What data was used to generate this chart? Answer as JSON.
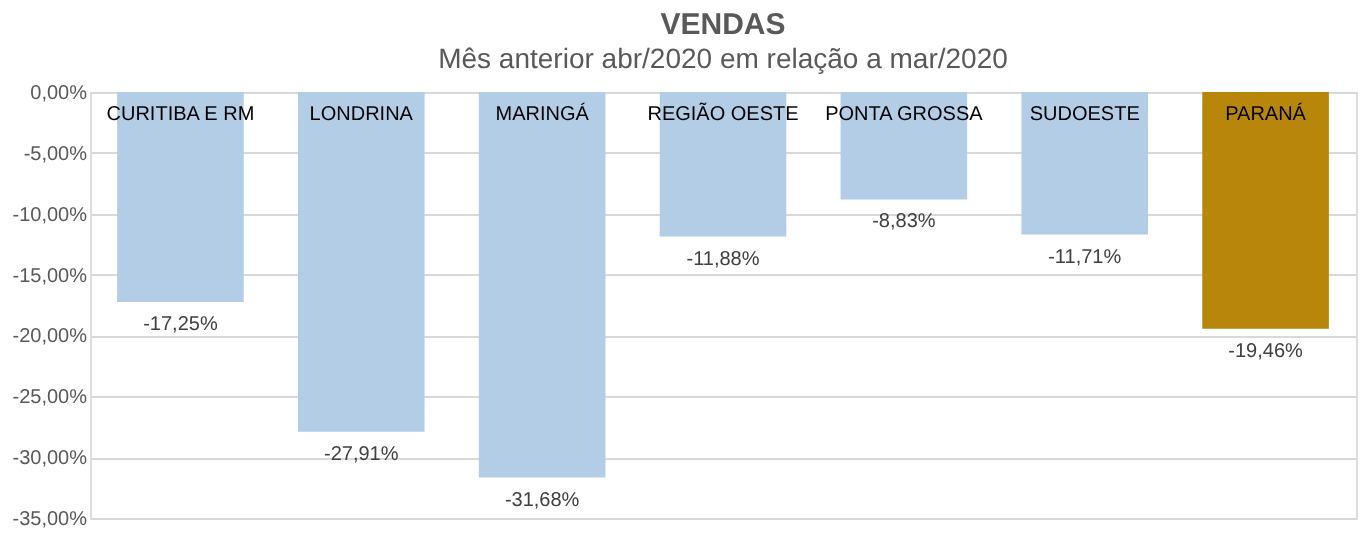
{
  "chart_data": {
    "type": "bar",
    "title": "VENDAS",
    "subtitle": "Mês anterior abr/2020 em relação a mar/2020",
    "categories": [
      "CURITIBA E RM",
      "LONDRINA",
      "MARINGÁ",
      "REGIÃO OESTE",
      "PONTA GROSSA",
      "SUDOESTE",
      "PARANÁ"
    ],
    "values": [
      -17.25,
      -27.91,
      -31.68,
      -11.88,
      -8.83,
      -11.71,
      -19.46
    ],
    "colors": [
      "#b4cde6",
      "#b4cde6",
      "#b4cde6",
      "#b4cde6",
      "#b4cde6",
      "#b4cde6",
      "#b8860b"
    ],
    "value_labels": [
      "-17,25%",
      "-27,91%",
      "-31,68%",
      "-11,88%",
      "-8,83%",
      "-11,71%",
      "-19,46%"
    ],
    "ylim": [
      -35,
      0
    ],
    "yticks": [
      {
        "value": 0,
        "label": "0,00%"
      },
      {
        "value": -5,
        "label": "-5,00%"
      },
      {
        "value": -10,
        "label": "-10,00%"
      },
      {
        "value": -15,
        "label": "-15,00%"
      },
      {
        "value": -20,
        "label": "-20,00%"
      },
      {
        "value": -25,
        "label": "-25,00%"
      },
      {
        "value": -30,
        "label": "-30,00%"
      },
      {
        "value": -35,
        "label": "-35,00%"
      }
    ],
    "grid": "y"
  }
}
